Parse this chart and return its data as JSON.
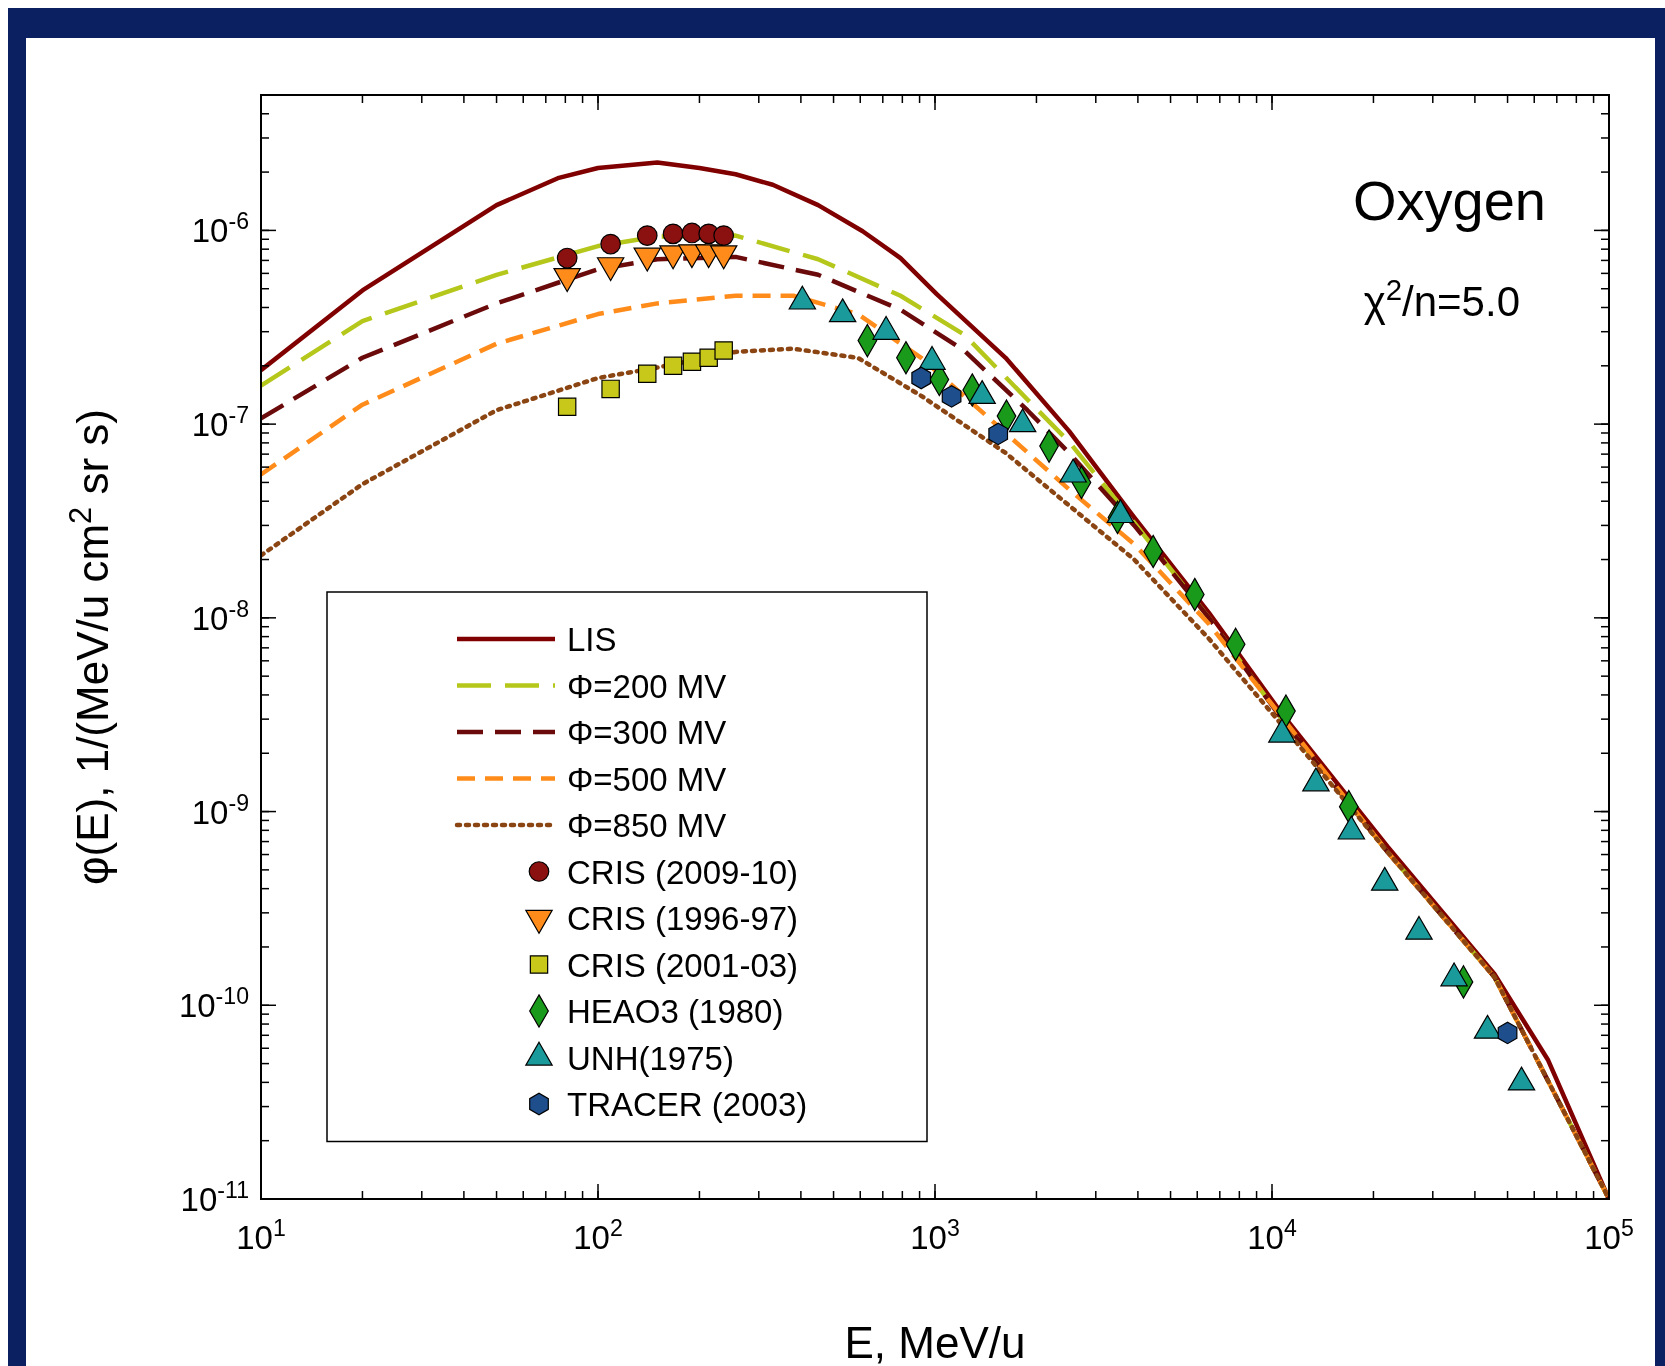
{
  "chart_data": {
    "type": "line",
    "title": "Oxygen",
    "xlabel": "E, MeV/u",
    "ylabel": "φ(E), 1/(MeV/u cm$^{2}$ sr s)",
    "log": "xy",
    "grid": false,
    "legend": "bottom left",
    "xlim": [
      10,
      100000
    ],
    "ylim": [
      1e-11,
      5e-06
    ],
    "xticks": [
      {
        "value": 10,
        "label": "10$^{1}$"
      },
      {
        "value": 100,
        "label": "10$^{2}$"
      },
      {
        "value": 1000,
        "label": "10$^{3}$"
      },
      {
        "value": 10000,
        "label": "10$^{4}$"
      },
      {
        "value": 100000,
        "label": "10$^{5}$"
      }
    ],
    "yticks": [
      {
        "value": 1e-11,
        "label": "10$^{-11}$"
      },
      {
        "value": 1e-10,
        "label": "10$^{-10}$"
      },
      {
        "value": 1e-09,
        "label": "10$^{-9}$"
      },
      {
        "value": 1e-08,
        "label": "10$^{-8}$"
      },
      {
        "value": 1e-07,
        "label": "10$^{-7}$"
      },
      {
        "value": 1e-06,
        "label": "10$^{-6}$"
      }
    ],
    "annotations": [
      "χ$^{2}$/n=5.0"
    ],
    "series": [
      {
        "name": "LIS",
        "type": "line",
        "line_style": "solid",
        "color": "#800000",
        "x": [
          10,
          20,
          50,
          76,
          100,
          150,
          200,
          256,
          330,
          450,
          610,
          790,
          1010,
          1620,
          2500,
          3900,
          6500,
          10700,
          22000,
          45700,
          66000,
          100000
        ],
        "values": [
          1.9e-07,
          4.9e-07,
          1.35e-06,
          1.86e-06,
          2.1e-06,
          2.24e-06,
          2.1e-06,
          1.95e-06,
          1.72e-06,
          1.35e-06,
          9.9e-07,
          7.2e-07,
          4.7e-07,
          2.2e-07,
          9.2e-08,
          3.3e-08,
          1.06e-08,
          3.2e-09,
          6.6e-10,
          1.45e-10,
          5.2e-11,
          1e-11
        ]
      },
      {
        "name": "Φ=200 MV",
        "type": "line",
        "line_style": "dashed",
        "color": "#b5c71a",
        "x": [
          10,
          20,
          50,
          100,
          150,
          256,
          450,
          790,
          1220,
          1880,
          2500,
          3900,
          6500,
          10700,
          22000,
          45700,
          100000
        ],
        "values": [
          1.58e-07,
          3.4e-07,
          5.9e-07,
          8.3e-07,
          9.3e-07,
          9.4e-07,
          7.1e-07,
          4.6e-07,
          2.9e-07,
          1.34e-07,
          8.1e-08,
          3.1e-08,
          1e-08,
          3e-09,
          6.2e-10,
          1.4e-10,
          1e-11
        ]
      },
      {
        "name": "Φ=300 MV",
        "type": "line",
        "line_style": "dashed",
        "color": "#6b0a0a",
        "x": [
          10,
          20,
          50,
          100,
          150,
          256,
          450,
          790,
          1220,
          1880,
          2500,
          3900,
          6500,
          10700,
          22000,
          45700,
          100000
        ],
        "values": [
          1.07e-07,
          2.2e-07,
          4.2e-07,
          6.3e-07,
          7.1e-07,
          7.3e-07,
          5.9e-07,
          3.9e-07,
          2.4e-07,
          1.18e-07,
          7.1e-08,
          3e-08,
          1e-08,
          3e-09,
          6.2e-10,
          1.4e-10,
          1e-11
        ]
      },
      {
        "name": "Φ=500 MV",
        "line_style": "dashed",
        "color": "#ff8c1a",
        "x": [
          10,
          20,
          50,
          100,
          150,
          256,
          380,
          590,
          910,
          2500,
          3900,
          6500,
          22000,
          45700,
          100000
        ],
        "values": [
          5.5e-08,
          1.26e-07,
          2.6e-07,
          3.7e-07,
          4.2e-07,
          4.6e-07,
          4.6e-07,
          3.7e-07,
          2.2e-07,
          4.6e-08,
          2.4e-08,
          9.3e-09,
          6.2e-10,
          1.4e-10,
          1e-11
        ]
      },
      {
        "name": "Φ=850 MV",
        "type": "line",
        "line_style": "dotted",
        "color": "#8b4513",
        "x": [
          10,
          20,
          50,
          100,
          150,
          256,
          380,
          590,
          910,
          1620,
          2500,
          3900,
          6500,
          10700,
          22000,
          45700,
          100000
        ],
        "values": [
          2.1e-08,
          4.9e-08,
          1.18e-07,
          1.73e-07,
          1.96e-07,
          2.36e-07,
          2.45e-07,
          2.2e-07,
          1.4e-07,
          7.1e-08,
          3.8e-08,
          2e-08,
          7.8e-09,
          2.8e-09,
          6.2e-10,
          1.4e-10,
          1e-11
        ]
      },
      {
        "name": "CRIS (2009-10)",
        "type": "scatter",
        "marker": "circle",
        "color": "#8b1010",
        "x": [
          81,
          109,
          140,
          167,
          190,
          213,
          236
        ],
        "values": [
          7.2e-07,
          8.5e-07,
          9.4e-07,
          9.6e-07,
          9.7e-07,
          9.6e-07,
          9.4e-07
        ]
      },
      {
        "name": "CRIS (1996-97)",
        "type": "scatter",
        "marker": "triangle-down",
        "color": "#ff8c1a",
        "x": [
          81,
          109,
          140,
          167,
          190,
          213,
          236
        ],
        "values": [
          5.8e-07,
          6.6e-07,
          7.4e-07,
          7.6e-07,
          7.7e-07,
          7.7e-07,
          7.6e-07
        ]
      },
      {
        "name": "CRIS (2001-03)",
        "type": "scatter",
        "marker": "square",
        "color": "#c8c81a",
        "x": [
          81,
          109,
          140,
          167,
          190,
          213,
          236
        ],
        "values": [
          1.23e-07,
          1.52e-07,
          1.82e-07,
          2e-07,
          2.1e-07,
          2.2e-07,
          2.4e-07
        ]
      },
      {
        "name": "HEAO3 (1980)",
        "type": "scatter",
        "marker": "diamond",
        "color": "#1a9a1a",
        "x": [
          630,
          820,
          1030,
          1290,
          1630,
          2180,
          2720,
          3480,
          4440,
          5900,
          7800,
          11000,
          16900,
          37000
        ],
        "values": [
          2.7e-07,
          2.2e-07,
          1.7e-07,
          1.5e-07,
          1.1e-07,
          7.7e-08,
          5e-08,
          3.3e-08,
          2.2e-08,
          1.32e-08,
          7.3e-09,
          3.3e-09,
          1.06e-09,
          1.32e-10
        ]
      },
      {
        "name": "UNH(1975)",
        "type": "scatter",
        "marker": "triangle",
        "color": "#1a9a9a",
        "x": [
          404,
          532,
          716,
          980,
          1380,
          1820,
          2570,
          3550,
          10700,
          13500,
          17200,
          21600,
          27300,
          34700,
          43600,
          55000
        ],
        "values": [
          4.3e-07,
          3.7e-07,
          3e-07,
          2.1e-07,
          1.4e-07,
          1e-07,
          5.5e-08,
          3.4e-08,
          2.5e-09,
          1.4e-09,
          7.9e-10,
          4.3e-10,
          2.4e-10,
          1.38e-10,
          7.4e-11,
          4e-11
        ]
      },
      {
        "name": "TRACER (2003)",
        "type": "scatter",
        "color": "#1f4e8c",
        "x": [
          910,
          1120,
          1540,
          50000
        ],
        "values": [
          1.73e-07,
          1.39e-07,
          8.9e-08,
          7.2e-11
        ]
      }
    ]
  }
}
